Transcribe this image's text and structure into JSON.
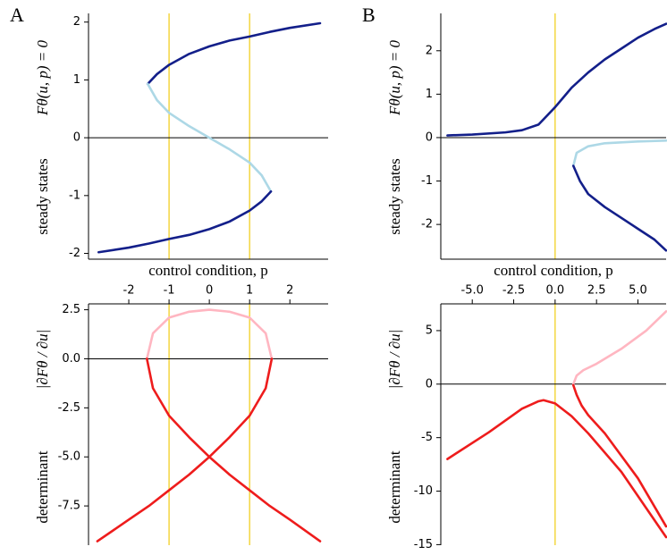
{
  "chart_data": [
    {
      "type": "line",
      "panel_label": "A",
      "ylabel": "steady states",
      "ylabel_math": "Fθ(u, p) = 0",
      "xlabel": "control condition, p",
      "xlim": [
        -3.0,
        2.95
      ],
      "ylim": [
        -2.1,
        2.15
      ],
      "yticks": [
        2,
        1,
        0,
        -1,
        -2
      ],
      "hline": 0,
      "vlines": [
        -1,
        1
      ],
      "vline_color": "#f2d024",
      "series": [
        {
          "color": "#131f8a",
          "x": [
            -1.53,
            -1.3,
            -1,
            -0.5,
            0,
            0.5,
            1,
            1.5,
            2,
            2.75
          ],
          "values": [
            0.93,
            1.1,
            1.26,
            1.45,
            1.58,
            1.68,
            1.75,
            1.83,
            1.9,
            1.98
          ]
        },
        {
          "color": "#add8e6",
          "x": [
            -1.53,
            -1.3,
            -1,
            -0.5,
            0,
            0.5,
            1,
            1.3,
            1.53
          ],
          "values": [
            0.93,
            0.65,
            0.43,
            0.2,
            0,
            -0.2,
            -0.43,
            -0.65,
            -0.93
          ]
        },
        {
          "color": "#131f8a",
          "x": [
            -2.75,
            -2,
            -1.5,
            -1,
            -0.5,
            0,
            0.5,
            1,
            1.3,
            1.53
          ],
          "values": [
            -1.98,
            -1.9,
            -1.83,
            -1.75,
            -1.68,
            -1.58,
            -1.45,
            -1.26,
            -1.1,
            -0.93
          ]
        }
      ]
    },
    {
      "type": "line",
      "ylabel": "determinant",
      "ylabel_math": "|∂Fθ / ∂u|",
      "xlim": [
        -3.0,
        2.95
      ],
      "xticks": [
        -2,
        -1,
        0,
        1,
        2
      ],
      "ylim": [
        -9.5,
        2.8
      ],
      "yticks": [
        2.5,
        {
          "value": 0,
          "label": "0.0"
        },
        -2.5,
        {
          "value": -5,
          "label": "-5.0"
        },
        -7.5
      ],
      "hline": 0,
      "vlines": [
        -1,
        1
      ],
      "vline_color": "#f2d024",
      "series": [
        {
          "color": "#ffb6c1",
          "x": [
            -1.55,
            -1.4,
            -1,
            -0.5,
            0,
            0.5,
            1,
            1.4,
            1.55
          ],
          "values": [
            0,
            1.3,
            2.1,
            2.4,
            2.5,
            2.4,
            2.1,
            1.3,
            0
          ]
        },
        {
          "color": "#ee1c1c",
          "x": [
            -1.55,
            -1.4,
            -1,
            -0.5,
            0,
            0.5,
            1,
            1.5,
            2,
            2.75
          ],
          "values": [
            0,
            -1.5,
            -2.9,
            -4,
            -5,
            -5.9,
            -6.7,
            -7.5,
            -8.2,
            -9.3
          ]
        },
        {
          "color": "#ee1c1c",
          "x": [
            1.55,
            1.4,
            1,
            0.5,
            0,
            -0.5,
            -1,
            -1.5,
            -2,
            -2.78
          ],
          "values": [
            0,
            -1.5,
            -2.9,
            -4,
            -5,
            -5.9,
            -6.7,
            -7.5,
            -8.2,
            -9.3
          ]
        }
      ]
    },
    {
      "type": "line",
      "panel_label": "B",
      "ylabel": "steady states",
      "ylabel_math": "Fθ(u, p) = 0",
      "xlabel": "control condition, p",
      "xlim": [
        -6.9,
        6.7
      ],
      "ylim": [
        -2.8,
        2.86
      ],
      "yticks": [
        2,
        1,
        0,
        -1,
        -2
      ],
      "hline": 0,
      "vlines": [
        0
      ],
      "vline_color": "#f2d024",
      "series": [
        {
          "color": "#131f8a",
          "x": [
            -6.5,
            -5,
            -3,
            -2,
            -1,
            0,
            1,
            2,
            3,
            4,
            5,
            6,
            6.7
          ],
          "values": [
            0.05,
            0.07,
            0.12,
            0.17,
            0.3,
            0.7,
            1.15,
            1.5,
            1.8,
            2.05,
            2.3,
            2.5,
            2.62
          ]
        },
        {
          "color": "#add8e6",
          "x": [
            1.1,
            1.3,
            2,
            3,
            5,
            6.7
          ],
          "values": [
            -0.65,
            -0.35,
            -0.2,
            -0.13,
            -0.09,
            -0.07
          ]
        },
        {
          "color": "#131f8a",
          "x": [
            1.1,
            1.5,
            2,
            3,
            4,
            5,
            6,
            6.7
          ],
          "values": [
            -0.65,
            -1.0,
            -1.3,
            -1.6,
            -1.85,
            -2.1,
            -2.35,
            -2.6
          ]
        }
      ]
    },
    {
      "type": "line",
      "ylabel": "determinant",
      "ylabel_math": "|∂Fθ / ∂u|",
      "xlim": [
        -6.9,
        6.7
      ],
      "xticks": [
        {
          "value": -5,
          "label": "-5.0"
        },
        -2.5,
        {
          "value": 0,
          "label": "0.0"
        },
        2.5,
        {
          "value": 5,
          "label": "5.0"
        }
      ],
      "ylim": [
        -15.05,
        7.5
      ],
      "yticks": [
        5,
        0,
        -5,
        -10,
        -15
      ],
      "hline": 0,
      "vlines": [
        0
      ],
      "vline_color": "#f2d024",
      "series": [
        {
          "color": "#ffb6c1",
          "x": [
            1.1,
            1.3,
            1.7,
            2.5,
            4,
            5.5,
            6.7
          ],
          "values": [
            0,
            0.8,
            1.3,
            1.9,
            3.3,
            5,
            6.8
          ]
        },
        {
          "color": "#ee1c1c",
          "x": [
            -6.5,
            -4,
            -2,
            -1,
            -0.7,
            0,
            1,
            2,
            4,
            6.7
          ],
          "values": [
            -7,
            -4.5,
            -2.3,
            -1.6,
            -1.5,
            -1.8,
            -3,
            -4.6,
            -8.2,
            -14.3
          ]
        },
        {
          "color": "#ee1c1c",
          "x": [
            1.1,
            1.3,
            1.6,
            2,
            3,
            5,
            6.7
          ],
          "values": [
            -0.1,
            -1,
            -2,
            -2.9,
            -4.6,
            -8.8,
            -13.3
          ]
        }
      ]
    }
  ]
}
